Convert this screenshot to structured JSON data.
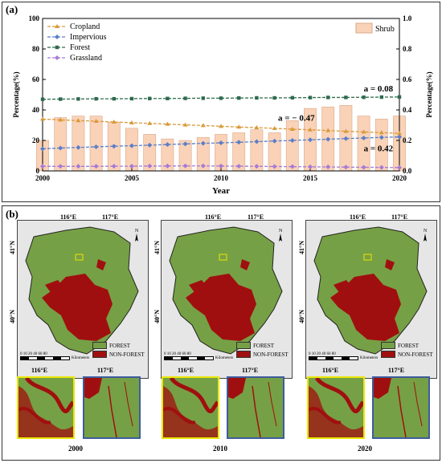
{
  "panel_a": {
    "label": "(a)"
  },
  "panel_b": {
    "label": "(b)",
    "lon_labels": [
      "116°E",
      "117°E"
    ],
    "lat_labels": [
      "41°N",
      "40°N"
    ],
    "legend": {
      "forest": "FOREST",
      "non_forest": "NON-FOREST"
    },
    "scale_ticks": "0 10 20   40   60   80",
    "scale_unit": "Kilometers",
    "north": "N",
    "years": [
      "2000",
      "2010",
      "2020"
    ],
    "colors": {
      "forest": "#76a045",
      "non_forest": "#a00f0f",
      "inset_yellow": "#e9e600",
      "inset_blue": "#3d5c9c"
    }
  },
  "chart_data": {
    "type": "line",
    "xlabel": "Year",
    "ylabel_left": "Percentage(%)",
    "ylabel_right": "Percentage(%)",
    "xlim": [
      2000,
      2020
    ],
    "ylim_left": [
      0,
      100
    ],
    "ylim_right": [
      0,
      1.0
    ],
    "x_ticks": [
      "2000",
      "2005",
      "2010",
      "2015",
      "2020"
    ],
    "y_ticks_left": [
      "0",
      "20",
      "40",
      "60",
      "80",
      "100"
    ],
    "y_ticks_right": [
      "0.0",
      "0.2",
      "0.4",
      "0.6",
      "0.8",
      "1.0"
    ],
    "x": [
      2000,
      2001,
      2002,
      2003,
      2004,
      2005,
      2006,
      2007,
      2008,
      2009,
      2010,
      2011,
      2012,
      2013,
      2014,
      2015,
      2016,
      2017,
      2018,
      2019,
      2020
    ],
    "bars": {
      "name": "Shrub",
      "axis": "right",
      "color": "#f9d2b8",
      "values": [
        0.2,
        0.35,
        0.36,
        0.36,
        0.32,
        0.28,
        0.24,
        0.21,
        0.2,
        0.22,
        0.24,
        0.25,
        0.27,
        0.25,
        0.33,
        0.41,
        0.42,
        0.43,
        0.36,
        0.34,
        0.36
      ]
    },
    "series": [
      {
        "name": "Cropland",
        "color": "#d99a3a",
        "marker": "triangle",
        "values": [
          34.0,
          33.5,
          33.0,
          32.6,
          32.1,
          31.6,
          31.2,
          30.7,
          30.2,
          29.8,
          29.3,
          28.8,
          28.4,
          27.9,
          27.4,
          27.0,
          26.5,
          26.0,
          25.6,
          25.1,
          24.6
        ]
      },
      {
        "name": "Impervious",
        "color": "#5a7ec9",
        "marker": "diamond",
        "values": [
          14.5,
          15.0,
          15.4,
          15.8,
          16.2,
          16.5,
          16.9,
          17.3,
          17.7,
          18.1,
          18.4,
          18.8,
          19.2,
          19.6,
          20.0,
          20.4,
          20.8,
          21.2,
          21.6,
          22.0,
          22.3
        ]
      },
      {
        "name": "Forest",
        "color": "#2e6b4e",
        "marker": "square",
        "values": [
          47.0,
          47.1,
          47.2,
          47.3,
          47.3,
          47.4,
          47.5,
          47.5,
          47.6,
          47.7,
          47.7,
          47.8,
          47.9,
          47.9,
          48.0,
          48.1,
          48.2,
          48.2,
          48.3,
          48.4,
          48.5
        ]
      },
      {
        "name": "Grassland",
        "color": "#a57ad6",
        "marker": "diamond",
        "values": [
          3.0,
          3.0,
          3.0,
          3.0,
          3.1,
          3.1,
          3.2,
          3.2,
          3.3,
          3.3,
          3.2,
          3.1,
          3.0,
          2.9,
          2.8,
          2.7,
          2.6,
          2.5,
          2.4,
          2.3,
          2.2
        ]
      }
    ],
    "annotations": [
      {
        "text": "a = 0.08",
        "x": 2018.0,
        "y": 52
      },
      {
        "text": "a = − 0.47",
        "x": 2013.2,
        "y": 33
      },
      {
        "text": "a = 0.42",
        "x": 2018.0,
        "y": 13
      }
    ],
    "legend_placement": "top-left"
  }
}
